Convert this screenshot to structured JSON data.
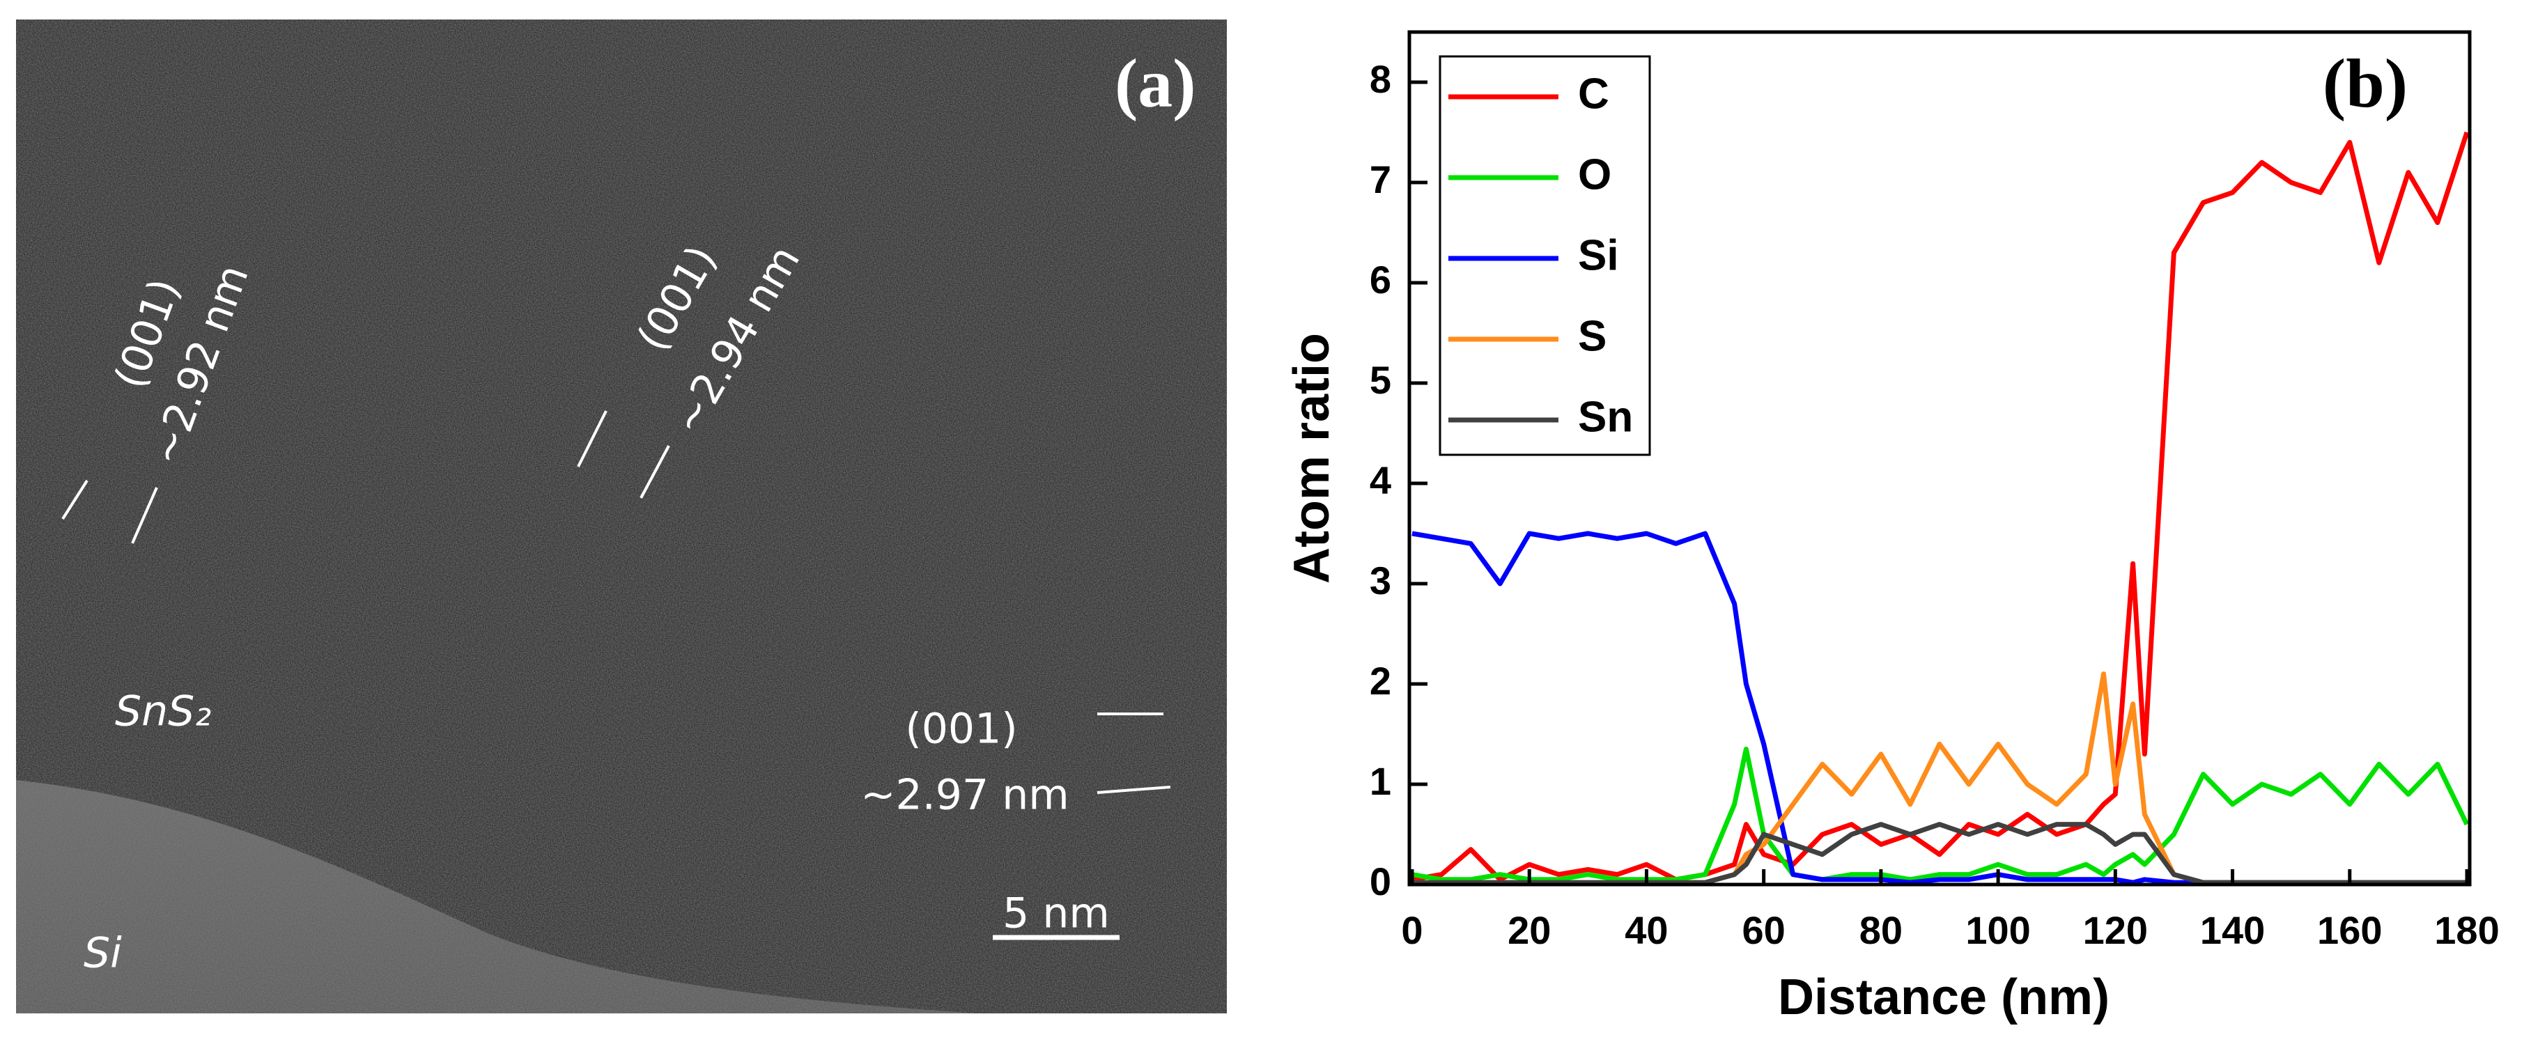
{
  "image_panel": {
    "label": "(a)",
    "annotations": [
      "(001)",
      "~2.92 nm",
      "(001)",
      "~2.94 nm",
      "(001)",
      "~2.97 nm"
    ],
    "regions": [
      "SnS₂",
      "Si"
    ],
    "scale_bar": "5 nm"
  },
  "chart_data": {
    "type": "line",
    "panel_label": "(b)",
    "x_label": "Distance (nm)",
    "y_label": "Atom ratio",
    "x": [
      0,
      5,
      10,
      15,
      20,
      25,
      30,
      35,
      40,
      45,
      50,
      55,
      57,
      60,
      65,
      70,
      75,
      80,
      85,
      90,
      95,
      100,
      105,
      110,
      115,
      118,
      120,
      123,
      125,
      130,
      135,
      140,
      145,
      150,
      155,
      160,
      165,
      170,
      175,
      180
    ],
    "series": [
      {
        "name": "C",
        "color": "#ff0000",
        "values": [
          0.05,
          0.1,
          0.35,
          0.05,
          0.2,
          0.1,
          0.15,
          0.1,
          0.2,
          0.05,
          0.1,
          0.2,
          0.6,
          0.3,
          0.2,
          0.5,
          0.6,
          0.4,
          0.5,
          0.3,
          0.6,
          0.5,
          0.7,
          0.5,
          0.6,
          0.8,
          0.9,
          3.2,
          1.3,
          6.3,
          6.8,
          6.9,
          7.2,
          7.0,
          6.9,
          7.4,
          6.2,
          7.1,
          6.6,
          7.5
        ]
      },
      {
        "name": "O",
        "color": "#00e000",
        "values": [
          0.1,
          0.05,
          0.05,
          0.1,
          0.05,
          0.05,
          0.1,
          0.05,
          0.05,
          0.05,
          0.1,
          0.8,
          1.35,
          0.5,
          0.1,
          0.05,
          0.1,
          0.1,
          0.05,
          0.1,
          0.1,
          0.2,
          0.1,
          0.1,
          0.2,
          0.1,
          0.2,
          0.3,
          0.2,
          0.5,
          1.1,
          0.8,
          1.0,
          0.9,
          1.1,
          0.8,
          1.2,
          0.9,
          1.2,
          0.6
        ]
      },
      {
        "name": "Si",
        "color": "#0000ff",
        "values": [
          3.5,
          3.45,
          3.4,
          3.0,
          3.5,
          3.45,
          3.5,
          3.45,
          3.5,
          3.4,
          3.5,
          2.8,
          2.0,
          1.4,
          0.1,
          0.05,
          0.05,
          0.05,
          0.02,
          0.05,
          0.05,
          0.1,
          0.05,
          0.05,
          0.05,
          0.05,
          0.05,
          0.02,
          0.05,
          0.02,
          0.02,
          0.02,
          0.02,
          0.02,
          0.02,
          0.02,
          0.02,
          0.02,
          0.02,
          0.02
        ]
      },
      {
        "name": "S",
        "color": "#ff8c1a",
        "values": [
          0.02,
          0.02,
          0.02,
          0.02,
          0.02,
          0.02,
          0.02,
          0.02,
          0.02,
          0.02,
          0.02,
          0.1,
          0.3,
          0.4,
          0.8,
          1.2,
          0.9,
          1.3,
          0.8,
          1.4,
          1.0,
          1.4,
          1.0,
          0.8,
          1.1,
          2.1,
          1.0,
          1.8,
          0.7,
          0.1,
          0.02,
          0.02,
          0.02,
          0.02,
          0.02,
          0.02,
          0.02,
          0.02,
          0.02,
          0.02
        ]
      },
      {
        "name": "Sn",
        "color": "#404040",
        "values": [
          0.02,
          0.02,
          0.02,
          0.02,
          0.02,
          0.02,
          0.02,
          0.02,
          0.02,
          0.02,
          0.02,
          0.1,
          0.2,
          0.5,
          0.4,
          0.3,
          0.5,
          0.6,
          0.5,
          0.6,
          0.5,
          0.6,
          0.5,
          0.6,
          0.6,
          0.5,
          0.4,
          0.5,
          0.5,
          0.1,
          0.02,
          0.02,
          0.02,
          0.02,
          0.02,
          0.02,
          0.02,
          0.02,
          0.02,
          0.02
        ]
      }
    ],
    "xlim": [
      0,
      180
    ],
    "xticks": [
      0,
      20,
      40,
      60,
      80,
      100,
      120,
      140,
      160,
      180
    ],
    "ylim": [
      0,
      8.5
    ],
    "yticks": [
      0,
      1,
      2,
      3,
      4,
      5,
      6,
      7,
      8
    ],
    "legend": "upper left",
    "grid": false
  }
}
